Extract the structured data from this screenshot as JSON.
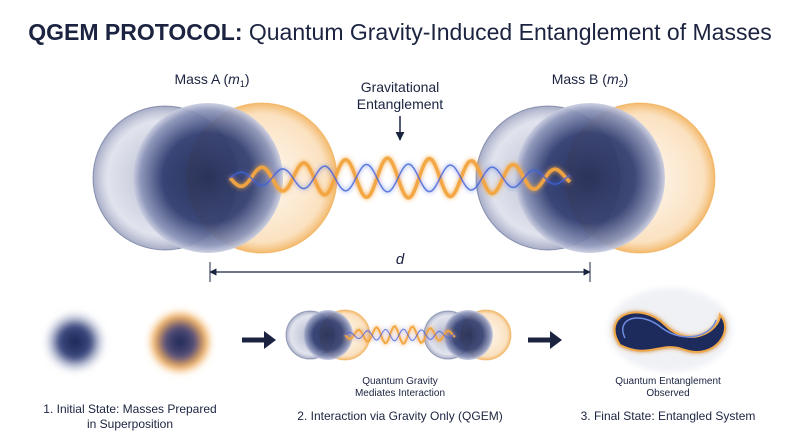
{
  "title": {
    "bold": "QGEM PROTOCOL:",
    "rest": " Quantum Gravity-Induced Entanglement of Masses"
  },
  "mass_a": {
    "prefix": "Mass A (",
    "symbol": "m",
    "subscript": "1",
    "suffix": ")"
  },
  "mass_b": {
    "prefix": "Mass B (",
    "symbol": "m",
    "subscript": "2",
    "suffix": ")"
  },
  "entanglement_label": [
    "Gravitational",
    "Entanglement"
  ],
  "distance_label": "d",
  "steps": [
    {
      "caption": null,
      "label": [
        "1. Initial State: Masses Prepared",
        "in Superposition"
      ]
    },
    {
      "caption": [
        "Quantum Gravity",
        "Mediates Interaction"
      ],
      "label": [
        "2. Interaction via Gravity Only (QGEM)"
      ]
    },
    {
      "caption": [
        "Quantum Entanglement",
        "Observed"
      ],
      "label": [
        "3. Final State: Entangled System"
      ]
    }
  ]
}
